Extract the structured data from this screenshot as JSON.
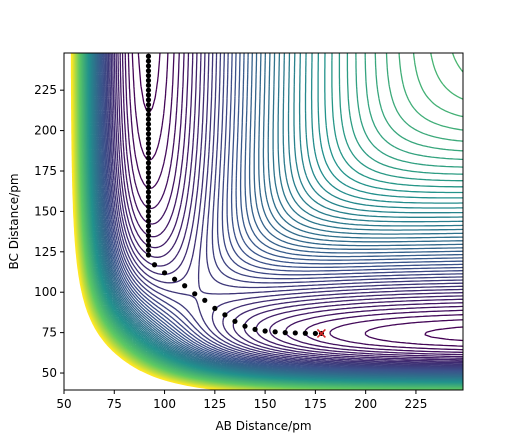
{
  "chart_data": {
    "type": "contour",
    "x_label": "AB Distance/pm",
    "y_label": "BC Distance/pm",
    "xlim": [
      50,
      248.4
    ],
    "ylim": [
      39.5,
      248
    ],
    "xticks": [
      50,
      75,
      100,
      125,
      150,
      175,
      200,
      225
    ],
    "yticks": [
      50,
      75,
      100,
      125,
      150,
      175,
      200,
      225
    ],
    "trajectory": {
      "color": "#000000",
      "x": [
        92,
        92,
        92,
        92,
        92,
        92,
        92,
        92,
        92,
        92,
        92,
        92,
        92,
        92,
        92,
        92,
        92,
        92,
        92,
        92,
        92,
        92,
        92,
        92,
        92,
        92,
        92,
        92,
        92,
        92,
        92,
        92,
        92,
        92,
        92,
        92,
        92,
        92,
        92,
        92,
        92,
        92,
        95,
        100,
        105,
        110,
        115,
        120,
        125,
        130,
        135,
        140,
        145,
        150,
        155,
        160,
        165,
        170,
        175,
        178
      ],
      "y": [
        246,
        243,
        240,
        237,
        234,
        231,
        228,
        225,
        222,
        219,
        216,
        213,
        210,
        207,
        204,
        201,
        198,
        195,
        192,
        189,
        186,
        183,
        180,
        177,
        174,
        171,
        168,
        165,
        162,
        159,
        156,
        153,
        150,
        147,
        144,
        141,
        138,
        135,
        132,
        129,
        126,
        123,
        117,
        112,
        108,
        104,
        99,
        95,
        90,
        86,
        82,
        79,
        77,
        76,
        75.5,
        75,
        74.8,
        74.6,
        74.5,
        74.5
      ]
    },
    "end_point": {
      "x": 178,
      "y": 74.5,
      "color": "#d62728"
    }
  }
}
